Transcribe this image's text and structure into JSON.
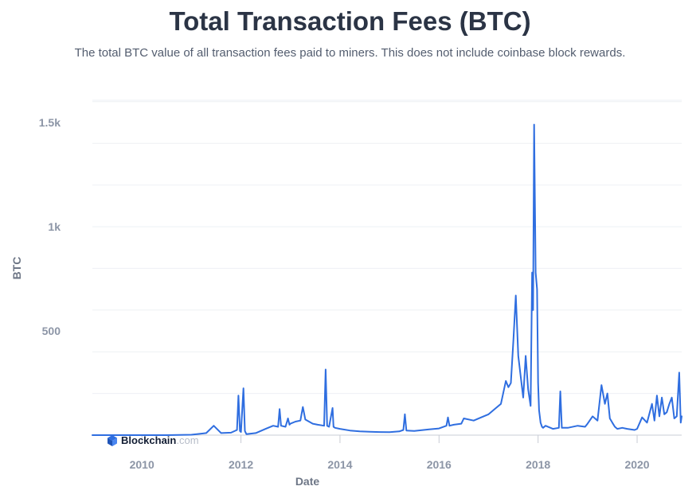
{
  "chart_data": {
    "type": "line",
    "title": "Total Transaction Fees (BTC)",
    "subtitle": "The total BTC value of all transaction fees paid to miners. This does not include coinbase block rewards.",
    "xlabel": "Date",
    "ylabel": "BTC",
    "xlim": [
      2009.0,
      2020.9
    ],
    "ylim": [
      0,
      1600
    ],
    "x_ticks": [
      2010,
      2012,
      2014,
      2016,
      2018,
      2020
    ],
    "x_tick_labels": [
      "2010",
      "2012",
      "2014",
      "2016",
      "2018",
      "2020"
    ],
    "y_ticks": [
      500,
      1000,
      1500
    ],
    "y_tick_labels": [
      "500",
      "1k",
      "1.5k"
    ],
    "grid": true,
    "series": [
      {
        "color": "#2f6ee0",
        "x": [
          2009.0,
          2009.5,
          2010.0,
          2010.5,
          2011.0,
          2011.3,
          2011.45,
          2011.6,
          2011.8,
          2011.92,
          2011.95,
          2011.98,
          2012.0,
          2012.05,
          2012.08,
          2012.11,
          2012.3,
          2012.5,
          2012.65,
          2012.75,
          2012.78,
          2012.81,
          2012.9,
          2012.95,
          2012.98,
          2013.0,
          2013.1,
          2013.2,
          2013.25,
          2013.3,
          2013.45,
          2013.55,
          2013.68,
          2013.71,
          2013.74,
          2013.78,
          2013.85,
          2013.87,
          2013.9,
          2014.0,
          2014.2,
          2014.4,
          2014.6,
          2014.8,
          2015.0,
          2015.2,
          2015.28,
          2015.31,
          2015.34,
          2015.5,
          2015.8,
          2016.0,
          2016.15,
          2016.18,
          2016.21,
          2016.3,
          2016.45,
          2016.5,
          2016.7,
          2016.85,
          2017.0,
          2017.15,
          2017.25,
          2017.35,
          2017.4,
          2017.45,
          2017.5,
          2017.55,
          2017.6,
          2017.65,
          2017.7,
          2017.75,
          2017.8,
          2017.85,
          2017.88,
          2017.9,
          2017.92,
          2017.95,
          2017.98,
          2018.0,
          2018.02,
          2018.05,
          2018.08,
          2018.1,
          2018.15,
          2018.3,
          2018.42,
          2018.45,
          2018.48,
          2018.6,
          2018.8,
          2018.95,
          2019.0,
          2019.1,
          2019.2,
          2019.28,
          2019.35,
          2019.4,
          2019.45,
          2019.5,
          2019.55,
          2019.6,
          2019.7,
          2019.8,
          2019.95,
          2020.0,
          2020.1,
          2020.2,
          2020.3,
          2020.35,
          2020.4,
          2020.45,
          2020.5,
          2020.55,
          2020.6,
          2020.65,
          2020.7,
          2020.75,
          2020.8,
          2020.85,
          2020.88,
          2020.9
        ],
        "y": [
          0,
          0,
          0,
          0,
          2,
          10,
          45,
          10,
          12,
          25,
          190,
          20,
          15,
          225,
          20,
          5,
          10,
          30,
          45,
          40,
          125,
          45,
          40,
          80,
          50,
          55,
          65,
          70,
          135,
          75,
          55,
          50,
          45,
          315,
          45,
          40,
          130,
          40,
          35,
          30,
          22,
          18,
          16,
          15,
          14,
          18,
          25,
          100,
          22,
          20,
          28,
          32,
          45,
          85,
          45,
          50,
          55,
          80,
          70,
          85,
          100,
          130,
          150,
          260,
          230,
          250,
          450,
          670,
          380,
          280,
          180,
          380,
          220,
          140,
          780,
          600,
          1490,
          780,
          700,
          250,
          120,
          60,
          40,
          35,
          45,
          30,
          35,
          210,
          35,
          35,
          45,
          40,
          55,
          90,
          70,
          240,
          150,
          200,
          80,
          60,
          40,
          30,
          35,
          30,
          25,
          30,
          85,
          60,
          150,
          70,
          190,
          90,
          180,
          100,
          110,
          150,
          180,
          80,
          90,
          300,
          60,
          90
        ]
      }
    ]
  },
  "brand": {
    "name": "Blockchain",
    "tld": ".com"
  }
}
